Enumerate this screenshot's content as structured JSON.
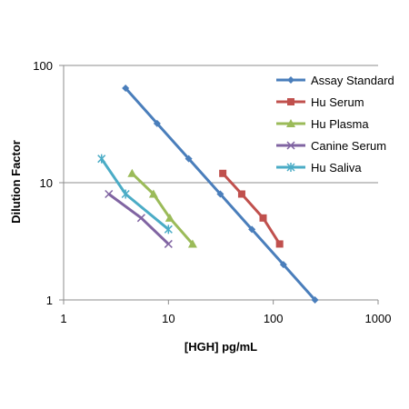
{
  "chart_data": {
    "type": "line",
    "xlabel": "[HGH] pg/mL",
    "ylabel": "Dilution Factor",
    "xscale": "log",
    "yscale": "log",
    "xlim": [
      1,
      1000
    ],
    "ylim": [
      1,
      100
    ],
    "x_ticks": [
      "1",
      "10",
      "100",
      "1000"
    ],
    "y_ticks": [
      "1",
      "10",
      "100"
    ],
    "grid": "horizontal major gridlines",
    "legend_position": "top-right",
    "series": [
      {
        "name": "Assay Standard",
        "color": "#4a7ebb",
        "marker": "diamond",
        "points": [
          [
            3.9,
            64
          ],
          [
            7.8,
            32
          ],
          [
            15.6,
            16
          ],
          [
            31.25,
            8
          ],
          [
            62.5,
            4
          ],
          [
            125,
            2
          ],
          [
            250,
            1
          ]
        ]
      },
      {
        "name": "Hu Serum",
        "color": "#c0504d",
        "marker": "square",
        "points": [
          [
            33,
            12
          ],
          [
            50,
            8
          ],
          [
            80,
            5
          ],
          [
            115,
            3
          ]
        ]
      },
      {
        "name": "Hu Plasma",
        "color": "#9bbb59",
        "marker": "triangle",
        "points": [
          [
            4.5,
            12
          ],
          [
            7.2,
            8
          ],
          [
            10.3,
            5
          ],
          [
            17,
            3
          ]
        ]
      },
      {
        "name": "Canine Serum",
        "color": "#8064a2",
        "marker": "x",
        "points": [
          [
            2.7,
            8
          ],
          [
            5.5,
            5
          ],
          [
            10,
            3
          ]
        ]
      },
      {
        "name": "Hu Saliva",
        "color": "#4bacc6",
        "marker": "asterisk",
        "points": [
          [
            2.3,
            16
          ],
          [
            3.9,
            8
          ],
          [
            10,
            4
          ]
        ]
      }
    ]
  }
}
